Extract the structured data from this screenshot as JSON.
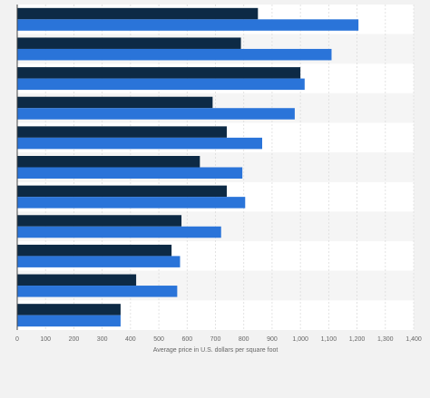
{
  "chart_data": {
    "type": "bar",
    "orientation": "horizontal",
    "title": "",
    "xlabel": "Average price in U.S. dollars per square foot",
    "ylabel": "",
    "xlim": [
      0,
      1400
    ],
    "x_ticks": [
      "0",
      "100",
      "200",
      "300",
      "400",
      "500",
      "600",
      "700",
      "800",
      "900",
      "1,000",
      "1,100",
      "1,200",
      "1,300",
      "1,400"
    ],
    "grid": true,
    "legend": "none",
    "categories": [
      "",
      "",
      "",
      "",
      "",
      "",
      "",
      "",
      "",
      "",
      ""
    ],
    "series": [
      {
        "color": "#0d2a45",
        "values": [
          850,
          790,
          1000,
          690,
          740,
          645,
          740,
          580,
          545,
          420,
          365
        ]
      },
      {
        "color": "#2a74d9",
        "values": [
          1205,
          1110,
          1015,
          980,
          865,
          795,
          805,
          720,
          575,
          565,
          365
        ]
      }
    ]
  }
}
